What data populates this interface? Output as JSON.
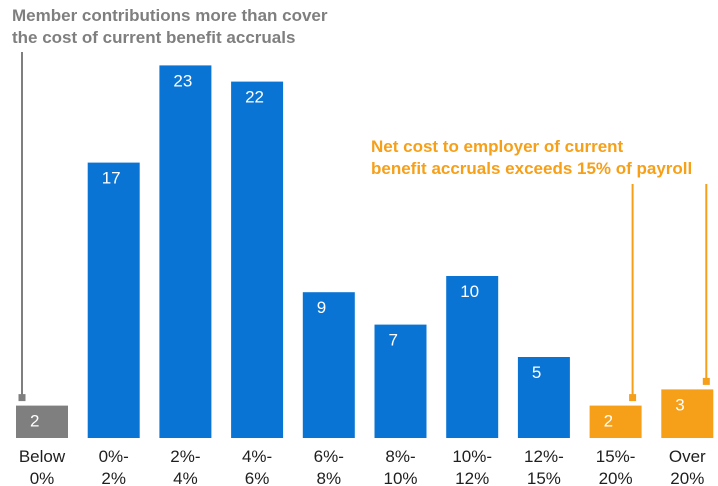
{
  "chart_data": {
    "type": "bar",
    "title": "",
    "xlabel": "",
    "ylabel": "",
    "ylim": [
      0,
      24
    ],
    "grid": false,
    "categories": [
      [
        "Below",
        "0%"
      ],
      [
        "0%-",
        "2%"
      ],
      [
        "2%-",
        "4%"
      ],
      [
        "4%-",
        "6%"
      ],
      [
        "6%-",
        "8%"
      ],
      [
        "8%-",
        "10%"
      ],
      [
        "10%-",
        "12%"
      ],
      [
        "12%-",
        "15%"
      ],
      [
        "15%-",
        "20%"
      ],
      [
        "Over",
        "20%"
      ]
    ],
    "values": [
      2,
      17,
      23,
      22,
      9,
      7,
      10,
      5,
      2,
      3
    ],
    "bar_colors": [
      "#7f7f7f",
      "#0a74d4",
      "#0a74d4",
      "#0a74d4",
      "#0a74d4",
      "#0a74d4",
      "#0a74d4",
      "#0a74d4",
      "#f6a01a",
      "#f6a01a"
    ],
    "annotations": [
      {
        "lines": [
          "Member contributions more than cover",
          "the cost of current benefit accruals"
        ],
        "color": "#7f7f7f",
        "targets": [
          0
        ]
      },
      {
        "lines": [
          "Net cost to employer of current",
          "benefit accruals exceeds 15% of payroll"
        ],
        "color": "#f6a01a",
        "targets": [
          8,
          9
        ]
      }
    ]
  }
}
